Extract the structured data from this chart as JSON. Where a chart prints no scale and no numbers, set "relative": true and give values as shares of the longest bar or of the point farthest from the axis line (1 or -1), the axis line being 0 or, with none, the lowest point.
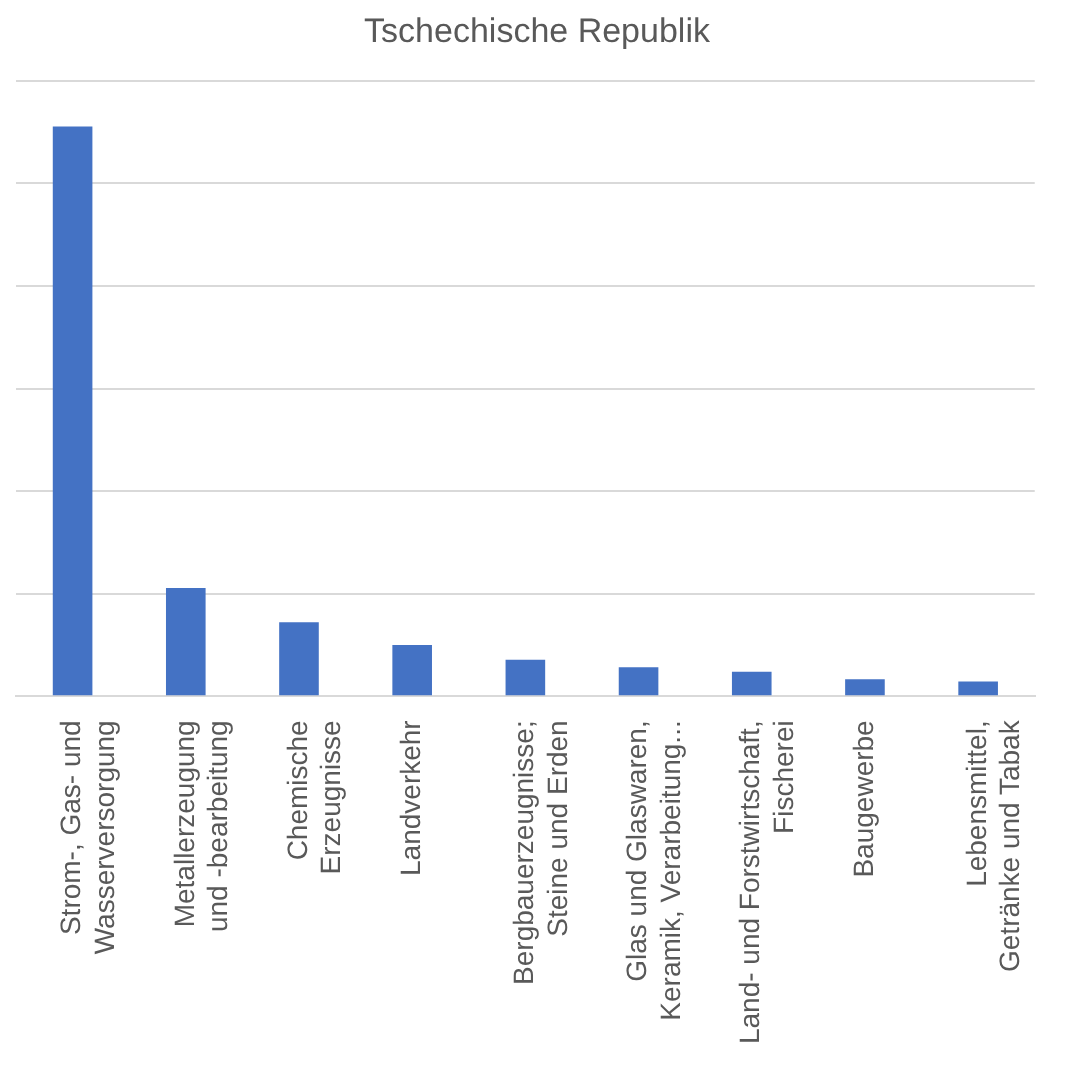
{
  "chart_data": {
    "type": "bar",
    "title": "Tschechische Republik",
    "categories": [
      "Strom-, Gas- und Wasserversorgung",
      "Metallerzeugung und -bearbeitung",
      "Chemische Erzeugnisse",
      "Landverkehr",
      "Bergbauerzeugnisse; Steine und Erden",
      "Glas und Glaswaren, Keramik, Verarbeitung...",
      "Land- und Forstwirtschaft, Fischerei",
      "Baugewerbe",
      "Lebensmittel, Getränke und Tabak"
    ],
    "values": [
      1,
      0.19,
      0.13,
      0.09,
      0.064,
      0.051,
      0.043,
      0.03,
      0.026
    ],
    "color": "#4472c4",
    "relative": true,
    "grid": "y",
    "legend": false
  }
}
